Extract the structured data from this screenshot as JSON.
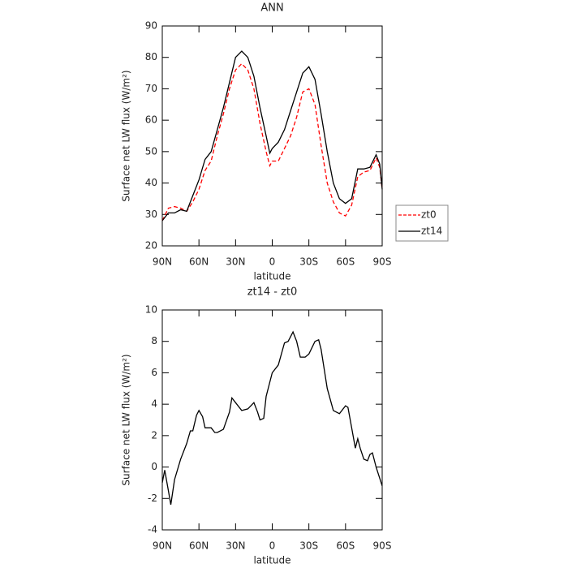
{
  "chart_data": [
    {
      "type": "line",
      "title": "ANN",
      "xlabel": "latitude",
      "ylabel": "Surface net LW flux (W/m²)",
      "x": [
        90,
        85,
        80,
        75,
        70,
        65,
        60,
        55,
        50,
        45,
        40,
        35,
        30,
        25,
        20,
        15,
        10,
        5,
        2,
        0,
        -5,
        -10,
        -15,
        -20,
        -25,
        -30,
        -35,
        -40,
        -45,
        -50,
        -55,
        -60,
        -65,
        -70,
        -75,
        -80,
        -85,
        -88,
        -90
      ],
      "series": [
        {
          "name": "zt0",
          "color": "#ff0000",
          "dash": true,
          "values": [
            28,
            32,
            32.5,
            32,
            31,
            34,
            38,
            44,
            47,
            55,
            62,
            70,
            76,
            78,
            76,
            70,
            59,
            50,
            45.5,
            47,
            47,
            51,
            55,
            61,
            69,
            70,
            65,
            52,
            40,
            34,
            30.5,
            29.5,
            33,
            42,
            43.5,
            44,
            48,
            45,
            38
          ]
        },
        {
          "name": "zt14",
          "color": "#000000",
          "dash": false,
          "values": [
            28,
            30.5,
            30.5,
            31.5,
            31,
            36,
            41,
            47.5,
            50,
            57,
            64,
            72,
            80,
            82,
            80,
            74,
            64,
            55,
            49.5,
            51,
            53,
            57,
            63,
            69,
            75,
            77,
            73,
            62,
            50,
            40,
            35,
            33.5,
            35,
            44.5,
            44.5,
            45,
            49,
            46,
            38
          ]
        }
      ],
      "xlim": [
        90,
        -90
      ],
      "xticks": [
        {
          "value": 90,
          "label": "90N"
        },
        {
          "value": 60,
          "label": "60N"
        },
        {
          "value": 30,
          "label": "30N"
        },
        0,
        {
          "value": -30,
          "label": "30S"
        },
        {
          "value": -60,
          "label": "60S"
        },
        {
          "value": -90,
          "label": "90S"
        }
      ],
      "ylim": [
        20,
        90
      ],
      "yticks": [
        20,
        30,
        40,
        50,
        60,
        70,
        80,
        90
      ],
      "legend": "right"
    },
    {
      "type": "line",
      "title": "zt14 - zt0",
      "xlabel": "latitude",
      "ylabel": "Surface net LW flux (W/m²)",
      "x": [
        90,
        88,
        85,
        83,
        80,
        75,
        70,
        67,
        65,
        62,
        60,
        57,
        55,
        50,
        47,
        45,
        40,
        35,
        33,
        30,
        25,
        20,
        15,
        12,
        10,
        7,
        5,
        0,
        -5,
        -10,
        -13,
        -17,
        -20,
        -23,
        -27,
        -30,
        -35,
        -38,
        -40,
        -45,
        -50,
        -55,
        -60,
        -62,
        -65,
        -68,
        -70,
        -72,
        -75,
        -78,
        -80,
        -82,
        -85,
        -90
      ],
      "series": [
        {
          "name": "zt14 - zt0",
          "color": "#000000",
          "dash": false,
          "values": [
            -1,
            -0.2,
            -1.5,
            -2.4,
            -0.8,
            0.5,
            1.5,
            2.3,
            2.3,
            3.3,
            3.6,
            3.2,
            2.5,
            2.5,
            2.2,
            2.2,
            2.4,
            3.5,
            4.4,
            4.1,
            3.6,
            3.7,
            4.1,
            3.5,
            3,
            3.1,
            4.5,
            6,
            6.5,
            7.9,
            8,
            8.6,
            8,
            7,
            7,
            7.2,
            8,
            8.1,
            7.5,
            5,
            3.6,
            3.4,
            3.9,
            3.8,
            2.5,
            1.2,
            1.8,
            1.2,
            0.5,
            0.4,
            0.8,
            0.9,
            0,
            -1.2
          ]
        }
      ],
      "xlim": [
        90,
        -90
      ],
      "xticks": [
        {
          "value": 90,
          "label": "90N"
        },
        {
          "value": 60,
          "label": "60N"
        },
        {
          "value": 30,
          "label": "30N"
        },
        0,
        {
          "value": -30,
          "label": "30S"
        },
        {
          "value": -60,
          "label": "60S"
        },
        {
          "value": -90,
          "label": "90S"
        }
      ],
      "ylim": [
        -4,
        10
      ],
      "yticks": [
        -4,
        -2,
        0,
        2,
        4,
        6,
        8,
        10
      ]
    }
  ]
}
